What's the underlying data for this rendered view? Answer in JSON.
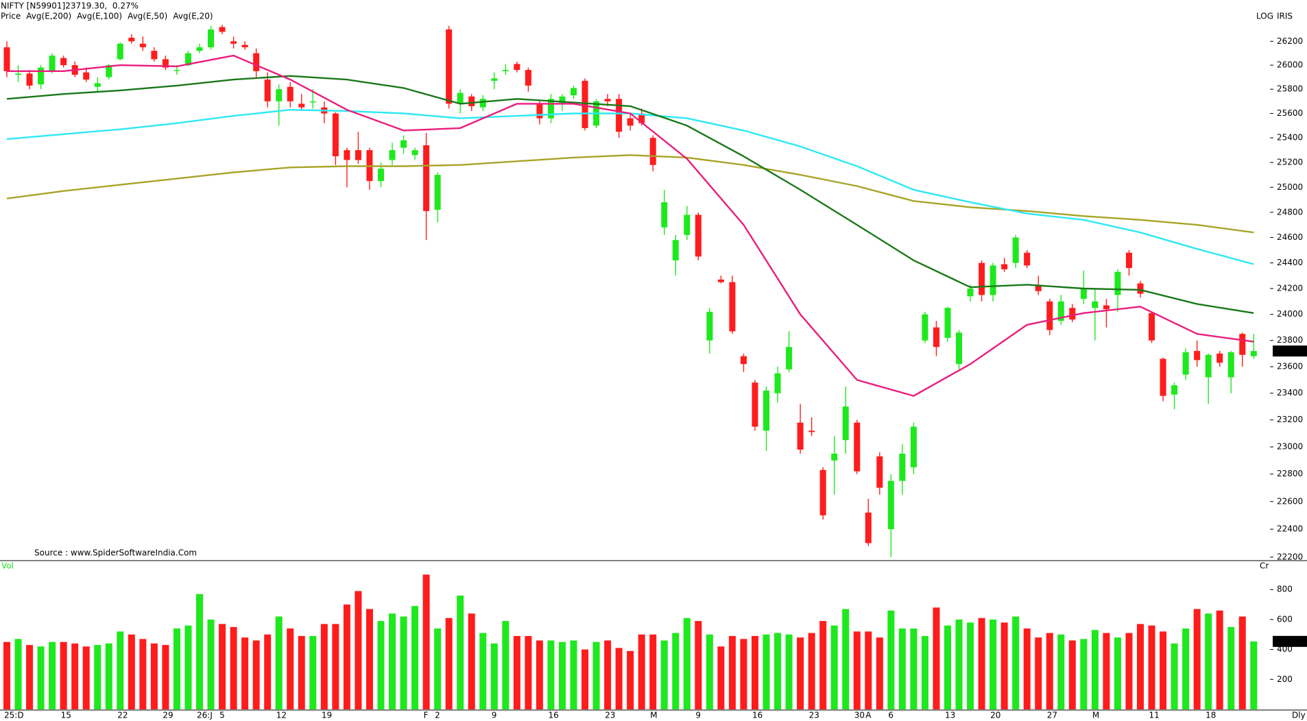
{
  "chart_data": [
    {
      "type": "candlestick",
      "title": "NIFTY [N59901]23719.30,  0.27%",
      "name": "Price",
      "scale_label": "LOG",
      "watermark": "IRIS",
      "source": "Source : www.SpiderSoftwareIndia.Com",
      "periodicity": "Dly",
      "log_scale": true,
      "up_color": "#1ee81e",
      "down_color": "#ff1c1c",
      "ylim": [
        22175,
        26550
      ],
      "yticks": [
        22200,
        22400,
        22600,
        22800,
        23000,
        23200,
        23400,
        23600,
        23800,
        24000,
        24200,
        24400,
        24600,
        24800,
        25000,
        25200,
        25400,
        25600,
        25800,
        26000,
        26200
      ],
      "categories": [
        "25:D",
        null,
        null,
        null,
        null,
        "15",
        null,
        null,
        null,
        null,
        "22",
        null,
        null,
        null,
        "29",
        null,
        null,
        "26:J",
        null,
        "5",
        null,
        null,
        null,
        null,
        "12",
        null,
        null,
        null,
        "19",
        null,
        null,
        null,
        null,
        null,
        null,
        null,
        null,
        "F",
        "2",
        null,
        null,
        null,
        null,
        "9",
        null,
        null,
        null,
        null,
        "16",
        null,
        null,
        null,
        null,
        "23",
        null,
        null,
        null,
        "M",
        null,
        null,
        null,
        "9",
        null,
        null,
        null,
        null,
        "16",
        null,
        null,
        null,
        null,
        "23",
        null,
        null,
        null,
        "30",
        "A",
        null,
        "6",
        null,
        null,
        null,
        null,
        "13",
        null,
        null,
        null,
        "20",
        null,
        null,
        null,
        null,
        "27",
        null,
        null,
        null,
        "M",
        null,
        null,
        null,
        null,
        "11",
        null,
        null,
        null,
        null,
        "18",
        null,
        null,
        null,
        null
      ],
      "open": [
        26150,
        25920,
        25930,
        25840,
        25950,
        26060,
        26000,
        25940,
        25820,
        25900,
        26050,
        26230,
        26180,
        26120,
        26050,
        25960,
        26000,
        26120,
        26150,
        26320,
        26200,
        26170,
        26100,
        25880,
        25700,
        25820,
        25680,
        25700,
        25650,
        25600,
        25300,
        25300,
        25300,
        25050,
        25220,
        25320,
        25260,
        25340,
        24820,
        26300,
        25680,
        25740,
        25650,
        25870,
        25950,
        26010,
        25960,
        25680,
        25560,
        25680,
        25750,
        25870,
        25500,
        25720,
        25720,
        25560,
        25600,
        25400,
        24680,
        24420,
        24620,
        24780,
        23800,
        24270,
        24250,
        23680,
        23480,
        23120,
        23400,
        23580,
        23180,
        23120,
        22830,
        22900,
        23050,
        23180,
        22520,
        22930,
        22400,
        22750,
        22850,
        23800,
        23900,
        23820,
        23620,
        24140,
        24400,
        24150,
        24390,
        24400,
        24480,
        24220,
        24100,
        23950,
        24050,
        24120,
        24050,
        24070,
        24150,
        24480,
        24240,
        24010,
        23660,
        23390,
        23540,
        23720,
        23520,
        23700,
        23520,
        23850,
        23680
      ],
      "high": [
        26200,
        26000,
        25960,
        26000,
        26100,
        26080,
        26030,
        25980,
        25900,
        26010,
        26190,
        26260,
        26240,
        26150,
        26080,
        26000,
        26120,
        26180,
        26330,
        26340,
        26240,
        26200,
        26140,
        25940,
        25840,
        25860,
        25760,
        25800,
        25700,
        25610,
        25320,
        25450,
        25320,
        25200,
        25360,
        25420,
        25320,
        25440,
        25120,
        26330,
        25800,
        25760,
        25750,
        25940,
        26010,
        26030,
        25980,
        25700,
        25760,
        25760,
        25830,
        25890,
        25720,
        25760,
        25760,
        25600,
        25640,
        25420,
        24980,
        24620,
        24850,
        24800,
        24050,
        24300,
        24300,
        23700,
        23500,
        23450,
        23600,
        23870,
        23320,
        23220,
        22850,
        23080,
        23450,
        23200,
        22620,
        22960,
        22800,
        23020,
        23180,
        24020,
        23950,
        24060,
        23880,
        24230,
        24420,
        24400,
        24440,
        24620,
        24500,
        24300,
        24120,
        24150,
        24080,
        24340,
        24200,
        24120,
        24350,
        24500,
        24260,
        24020,
        23670,
        23480,
        23740,
        23800,
        23700,
        23720,
        23720,
        23860,
        23850
      ],
      "low": [
        25900,
        25860,
        25800,
        25800,
        25930,
        25980,
        25900,
        25860,
        25780,
        25880,
        26040,
        26180,
        26120,
        26030,
        25960,
        25920,
        25990,
        26100,
        26130,
        26260,
        26140,
        26130,
        25900,
        25650,
        25500,
        25650,
        25620,
        25640,
        25520,
        25180,
        25000,
        25190,
        24980,
        25000,
        25180,
        25270,
        25220,
        24580,
        24720,
        25640,
        25600,
        25620,
        25620,
        25800,
        25920,
        25940,
        25780,
        25510,
        25520,
        25620,
        25720,
        25460,
        25480,
        25660,
        25400,
        25460,
        25500,
        25130,
        24620,
        24300,
        24580,
        24420,
        23700,
        24240,
        23850,
        23560,
        23120,
        22970,
        23330,
        23560,
        22950,
        23080,
        22470,
        22650,
        22950,
        22800,
        22280,
        22650,
        22200,
        22650,
        22800,
        23780,
        23680,
        23790,
        23580,
        24100,
        24100,
        24100,
        24330,
        24360,
        24360,
        24150,
        23840,
        23920,
        23940,
        24080,
        23800,
        23900,
        24020,
        24300,
        24130,
        23780,
        23340,
        23280,
        23500,
        23600,
        23320,
        23600,
        23400,
        23600,
        23660
      ],
      "close": [
        25950,
        25930,
        25830,
        25980,
        26080,
        26000,
        25920,
        25880,
        25850,
        26000,
        26180,
        26200,
        26150,
        26050,
        25980,
        25960,
        26100,
        26150,
        26300,
        26280,
        26180,
        26150,
        25950,
        25700,
        25800,
        25700,
        25650,
        25700,
        25600,
        25250,
        25220,
        25220,
        25050,
        25150,
        25300,
        25380,
        25300,
        24810,
        25100,
        25680,
        25770,
        25660,
        25720,
        25890,
        25960,
        25960,
        25830,
        25560,
        25720,
        25740,
        25810,
        25480,
        25700,
        25700,
        25450,
        25500,
        25520,
        25180,
        24880,
        24580,
        24780,
        24450,
        24020,
        24250,
        23870,
        23620,
        23150,
        23420,
        23550,
        23750,
        22980,
        23110,
        22500,
        22950,
        23300,
        22820,
        22300,
        22700,
        22750,
        22950,
        23150,
        24000,
        23750,
        24050,
        23860,
        24200,
        24150,
        24380,
        24350,
        24600,
        24380,
        24180,
        23880,
        24100,
        23960,
        24200,
        24100,
        24040,
        24330,
        24360,
        24160,
        23800,
        23380,
        23460,
        23710,
        23650,
        23690,
        23630,
        23710,
        23690,
        23719.3
      ],
      "series": [
        {
          "name": "Avg(E,200)",
          "color": "#a8a426",
          "x": [
            0,
            5,
            10,
            15,
            20,
            25,
            30,
            35,
            40,
            45,
            50,
            55,
            60,
            65,
            70,
            75,
            80,
            85,
            90,
            95,
            100,
            105,
            110
          ],
          "values": [
            24910,
            24970,
            25020,
            25070,
            25120,
            25160,
            25170,
            25170,
            25180,
            25210,
            25240,
            25260,
            25240,
            25180,
            25100,
            25010,
            24890,
            24840,
            24810,
            24770,
            24740,
            24700,
            24640
          ]
        },
        {
          "name": "Avg(E,100)",
          "color": "#2ee8f2",
          "x": [
            0,
            5,
            10,
            15,
            20,
            25,
            30,
            35,
            40,
            45,
            50,
            55,
            60,
            65,
            70,
            75,
            80,
            85,
            90,
            95,
            100,
            105,
            110
          ],
          "values": [
            25390,
            25430,
            25470,
            25520,
            25580,
            25630,
            25620,
            25600,
            25560,
            25580,
            25600,
            25600,
            25560,
            25460,
            25330,
            25170,
            24980,
            24880,
            24790,
            24740,
            24640,
            24510,
            24390
          ]
        },
        {
          "name": "Avg(E,50)",
          "color": "#187818",
          "x": [
            0,
            5,
            10,
            15,
            20,
            25,
            30,
            35,
            40,
            45,
            50,
            55,
            60,
            65,
            70,
            75,
            80,
            85,
            90,
            95,
            100,
            105,
            110
          ],
          "values": [
            25720,
            25760,
            25790,
            25830,
            25880,
            25910,
            25880,
            25810,
            25680,
            25720,
            25690,
            25660,
            25500,
            25250,
            24980,
            24700,
            24420,
            24210,
            24230,
            24200,
            24190,
            24080,
            24010
          ]
        },
        {
          "name": "Avg(E,20)",
          "color": "#ea1c7c",
          "x": [
            0,
            5,
            10,
            15,
            20,
            25,
            30,
            35,
            40,
            45,
            50,
            55,
            60,
            65,
            70,
            75,
            80,
            85,
            90,
            95,
            100,
            105,
            110
          ],
          "values": [
            25950,
            25950,
            26000,
            25990,
            26080,
            25880,
            25630,
            25460,
            25480,
            25680,
            25680,
            25600,
            25230,
            24700,
            24000,
            23500,
            23380,
            23620,
            23920,
            24010,
            24060,
            23850,
            23790
          ]
        }
      ]
    },
    {
      "type": "bar",
      "title": "Vol",
      "unit_label": "Cr",
      "up_color": "#1ee81e",
      "down_color": "#ff1c1c",
      "ylim": [
        0,
        975
      ],
      "yticks": [
        200,
        400,
        600,
        800
      ],
      "values": [
        450,
        470,
        430,
        420,
        450,
        450,
        440,
        420,
        430,
        440,
        520,
        500,
        470,
        440,
        430,
        540,
        560,
        770,
        600,
        570,
        550,
        480,
        460,
        500,
        620,
        540,
        490,
        490,
        570,
        570,
        700,
        790,
        670,
        590,
        640,
        620,
        690,
        900,
        540,
        610,
        760,
        640,
        510,
        440,
        590,
        490,
        490,
        460,
        460,
        450,
        460,
        400,
        450,
        460,
        410,
        390,
        500,
        500,
        460,
        510,
        610,
        590,
        500,
        420,
        490,
        470,
        490,
        500,
        510,
        500,
        480,
        510,
        590,
        560,
        670,
        520,
        520,
        480,
        660,
        540,
        540,
        490,
        680,
        560,
        600,
        580,
        610,
        600,
        580,
        620,
        540,
        480,
        510,
        500,
        460,
        470,
        530,
        510,
        480,
        510,
        570,
        560,
        520,
        440,
        540,
        670,
        640,
        660,
        550,
        620,
        453.86
      ]
    }
  ]
}
